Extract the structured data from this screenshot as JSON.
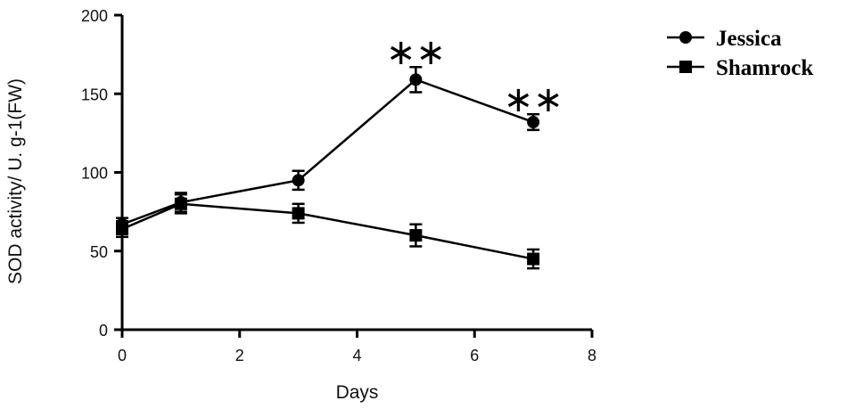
{
  "chart_data": {
    "type": "line",
    "title": "",
    "xlabel": "Days",
    "ylabel": "SOD activity/ U. g-1(FW)",
    "xlim": [
      0,
      8
    ],
    "ylim": [
      0,
      200
    ],
    "x_ticks": [
      0,
      2,
      4,
      6,
      8
    ],
    "y_ticks": [
      0,
      50,
      100,
      150,
      200
    ],
    "grid": false,
    "legend_position": "top-right",
    "series": [
      {
        "name": "Jessica",
        "marker": "circle",
        "x": [
          0,
          1,
          3,
          5,
          7
        ],
        "y": [
          67,
          81,
          95,
          159,
          132
        ],
        "error": [
          4,
          6,
          6,
          8,
          5
        ],
        "significance": [
          "",
          "",
          "",
          "**",
          "**"
        ]
      },
      {
        "name": "Shamrock",
        "marker": "square",
        "x": [
          0,
          1,
          3,
          5,
          7
        ],
        "y": [
          64,
          80,
          74,
          60,
          45
        ],
        "error": [
          5,
          6,
          6,
          7,
          6
        ],
        "significance": [
          "",
          "",
          "",
          "",
          ""
        ]
      }
    ]
  }
}
